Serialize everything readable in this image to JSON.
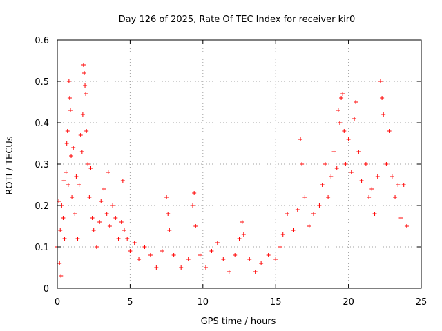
{
  "chart_data": {
    "type": "scatter",
    "title": "Day 126 of 2025, Rate Of TEC Index for receiver kir0",
    "xlabel": "GPS time / hours",
    "ylabel": "ROTI / TECUs",
    "xlim": [
      0,
      25
    ],
    "ylim": [
      0,
      0.6
    ],
    "x_ticks": [
      0,
      5,
      10,
      15,
      20,
      25
    ],
    "x_tick_labels": [
      "0",
      "5",
      "10",
      "15",
      "20",
      "25"
    ],
    "y_ticks": [
      0,
      0.1,
      0.2,
      0.3,
      0.4,
      0.5,
      0.6
    ],
    "y_tick_labels": [
      "0",
      "0.1",
      "0.2",
      "0.3",
      "0.4",
      "0.5",
      "0.6"
    ],
    "grid": true,
    "marker": "+",
    "series_color": "#ff0000",
    "series": [
      {
        "name": "ROTI",
        "points": [
          [
            0.0,
            0.1
          ],
          [
            0.1,
            0.21
          ],
          [
            0.15,
            0.06
          ],
          [
            0.2,
            0.14
          ],
          [
            0.25,
            0.03
          ],
          [
            0.3,
            0.2
          ],
          [
            0.4,
            0.17
          ],
          [
            0.45,
            0.26
          ],
          [
            0.5,
            0.12
          ],
          [
            0.6,
            0.28
          ],
          [
            0.65,
            0.35
          ],
          [
            0.7,
            0.38
          ],
          [
            0.75,
            0.25
          ],
          [
            0.8,
            0.5
          ],
          [
            0.85,
            0.46
          ],
          [
            0.9,
            0.43
          ],
          [
            0.95,
            0.32
          ],
          [
            1.0,
            0.22
          ],
          [
            1.1,
            0.34
          ],
          [
            1.2,
            0.18
          ],
          [
            1.3,
            0.27
          ],
          [
            1.4,
            0.12
          ],
          [
            1.5,
            0.25
          ],
          [
            1.6,
            0.37
          ],
          [
            1.7,
            0.33
          ],
          [
            1.75,
            0.42
          ],
          [
            1.8,
            0.54
          ],
          [
            1.85,
            0.52
          ],
          [
            1.9,
            0.49
          ],
          [
            1.95,
            0.47
          ],
          [
            2.0,
            0.38
          ],
          [
            2.1,
            0.3
          ],
          [
            2.2,
            0.22
          ],
          [
            2.3,
            0.29
          ],
          [
            2.4,
            0.17
          ],
          [
            2.5,
            0.14
          ],
          [
            2.7,
            0.1
          ],
          [
            2.9,
            0.16
          ],
          [
            3.0,
            0.21
          ],
          [
            3.2,
            0.24
          ],
          [
            3.4,
            0.18
          ],
          [
            3.5,
            0.28
          ],
          [
            3.6,
            0.15
          ],
          [
            3.8,
            0.2
          ],
          [
            4.0,
            0.17
          ],
          [
            4.2,
            0.12
          ],
          [
            4.4,
            0.16
          ],
          [
            4.5,
            0.26
          ],
          [
            4.6,
            0.14
          ],
          [
            4.8,
            0.12
          ],
          [
            5.0,
            0.09
          ],
          [
            5.3,
            0.11
          ],
          [
            5.6,
            0.07
          ],
          [
            6.0,
            0.1
          ],
          [
            6.4,
            0.08
          ],
          [
            6.8,
            0.05
          ],
          [
            7.2,
            0.09
          ],
          [
            7.5,
            0.22
          ],
          [
            7.6,
            0.18
          ],
          [
            7.7,
            0.14
          ],
          [
            8.0,
            0.08
          ],
          [
            8.5,
            0.05
          ],
          [
            9.0,
            0.07
          ],
          [
            9.3,
            0.2
          ],
          [
            9.4,
            0.23
          ],
          [
            9.5,
            0.15
          ],
          [
            9.8,
            0.08
          ],
          [
            10.2,
            0.05
          ],
          [
            10.6,
            0.09
          ],
          [
            11.0,
            0.11
          ],
          [
            11.4,
            0.07
          ],
          [
            11.8,
            0.04
          ],
          [
            12.2,
            0.08
          ],
          [
            12.5,
            0.12
          ],
          [
            12.7,
            0.16
          ],
          [
            12.8,
            0.13
          ],
          [
            13.2,
            0.07
          ],
          [
            13.6,
            0.04
          ],
          [
            14.0,
            0.06
          ],
          [
            14.5,
            0.08
          ],
          [
            15.0,
            0.07
          ],
          [
            15.3,
            0.1
          ],
          [
            15.5,
            0.13
          ],
          [
            15.8,
            0.18
          ],
          [
            16.2,
            0.14
          ],
          [
            16.5,
            0.19
          ],
          [
            16.7,
            0.36
          ],
          [
            16.8,
            0.3
          ],
          [
            17.0,
            0.22
          ],
          [
            17.3,
            0.15
          ],
          [
            17.6,
            0.18
          ],
          [
            18.0,
            0.2
          ],
          [
            18.2,
            0.25
          ],
          [
            18.4,
            0.3
          ],
          [
            18.6,
            0.22
          ],
          [
            18.8,
            0.27
          ],
          [
            19.0,
            0.33
          ],
          [
            19.2,
            0.29
          ],
          [
            19.3,
            0.43
          ],
          [
            19.4,
            0.4
          ],
          [
            19.5,
            0.46
          ],
          [
            19.6,
            0.47
          ],
          [
            19.7,
            0.38
          ],
          [
            19.8,
            0.3
          ],
          [
            20.0,
            0.36
          ],
          [
            20.2,
            0.28
          ],
          [
            20.4,
            0.41
          ],
          [
            20.5,
            0.45
          ],
          [
            20.7,
            0.33
          ],
          [
            20.9,
            0.26
          ],
          [
            21.2,
            0.3
          ],
          [
            21.4,
            0.22
          ],
          [
            21.6,
            0.24
          ],
          [
            21.8,
            0.18
          ],
          [
            22.0,
            0.27
          ],
          [
            22.2,
            0.5
          ],
          [
            22.3,
            0.46
          ],
          [
            22.4,
            0.42
          ],
          [
            22.6,
            0.3
          ],
          [
            22.8,
            0.38
          ],
          [
            23.0,
            0.27
          ],
          [
            23.2,
            0.22
          ],
          [
            23.4,
            0.25
          ],
          [
            23.6,
            0.17
          ],
          [
            23.8,
            0.25
          ],
          [
            24.0,
            0.15
          ]
        ]
      }
    ]
  }
}
